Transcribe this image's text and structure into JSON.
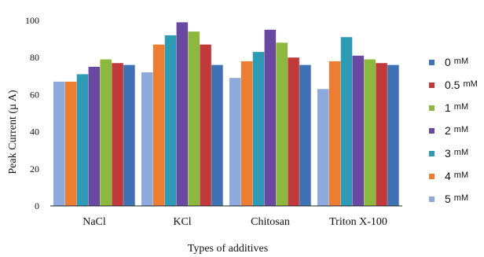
{
  "chart_data": {
    "type": "bar",
    "title": "",
    "xlabel": "Types of additives",
    "ylabel": "Peak Current (µ A)",
    "ylim": [
      0,
      100
    ],
    "yticks": [
      0,
      20,
      40,
      60,
      80,
      100
    ],
    "grid": false,
    "legend_position": "right",
    "categories": [
      "NaCl",
      "KCl",
      "Chitosan",
      "Triton X-100"
    ],
    "series": [
      {
        "name": "5 mM",
        "value": "5",
        "unit": "mM",
        "color": "#8ea9db",
        "values": [
          67,
          72,
          69,
          63
        ]
      },
      {
        "name": "4 mM",
        "value": "4",
        "unit": "mM",
        "color": "#ed7d31",
        "values": [
          67,
          87,
          78,
          78
        ]
      },
      {
        "name": "3 mM",
        "value": "3",
        "unit": "mM",
        "color": "#2e9bb5",
        "values": [
          71,
          92,
          83,
          91
        ]
      },
      {
        "name": "2 mM",
        "value": "2",
        "unit": "mM",
        "color": "#6b49a3",
        "values": [
          75,
          99,
          95,
          81
        ]
      },
      {
        "name": "1 mM",
        "value": "1",
        "unit": "mM",
        "color": "#8cb83e",
        "values": [
          79,
          94,
          88,
          79
        ]
      },
      {
        "name": "0.5 mM",
        "value": "0.5",
        "unit": "mM",
        "color": "#c0393b",
        "values": [
          77,
          87,
          80,
          77
        ]
      },
      {
        "name": "0 mM",
        "value": "0",
        "unit": "mM",
        "color": "#3e72b4",
        "values": [
          76,
          76,
          76,
          76
        ]
      }
    ],
    "legend_order": [
      "0 mM",
      "0.5 mM",
      "1 mM",
      "2 mM",
      "3 mM",
      "4 mM",
      "5 mM"
    ]
  }
}
